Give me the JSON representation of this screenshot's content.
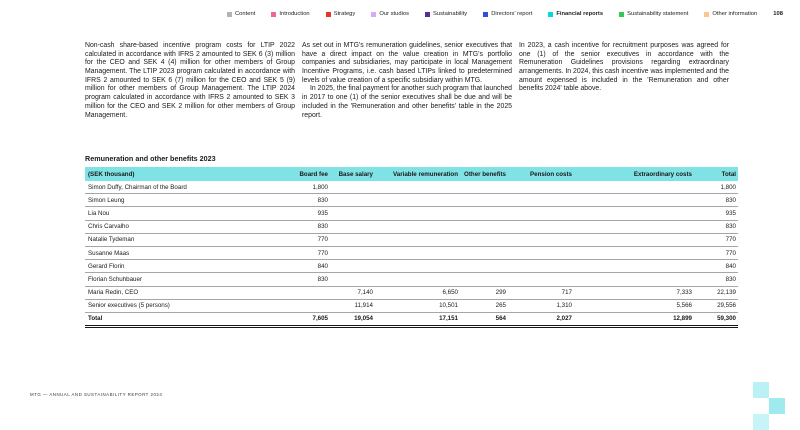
{
  "nav": {
    "items": [
      {
        "label": "Content",
        "color": "#b3b3b3"
      },
      {
        "label": "Introduction",
        "color": "#f26591"
      },
      {
        "label": "Strategy",
        "color": "#e8352b"
      },
      {
        "label": "Our studios",
        "color": "#d9aaf4"
      },
      {
        "label": "Sustainability",
        "color": "#5b2d9b"
      },
      {
        "label": "Directors' report",
        "color": "#2f4de2"
      },
      {
        "label": "Financial reports",
        "color": "#00dcdc"
      },
      {
        "label": "Sustainability statement",
        "color": "#36c75c"
      },
      {
        "label": "Other information",
        "color": "#fec38e"
      }
    ],
    "page_number": "108"
  },
  "body": {
    "col1_p1": "Non-cash share-based incentive program costs for LTIP 2022 calculated in accordance with IFRS 2 amounted to SEK 6 (3) million for the CEO and SEK 4 (4) million for other members of Group Management. The LTIP 2023 program calculated in accordance with IFRS 2 amounted to SEK 6 (7) million for the CEO and SEK 5 (9) million for other members of Group Management. The LTIP 2024 program calculated in accordance with IFRS 2 amounted to SEK 3 million for the CEO and SEK 2 million for other members of Group Management.",
    "col2_p1": "As set out in MTG's remuneration guidelines, senior executives that have a direct impact on the value creation in MTG's portfolio companies and subsidiaries, may participate in local Management Incentive Programs, i.e. cash based LTIPs linked to predetermined levels of value creation of a specific subsidiary within MTG.",
    "col2_p2": "In 2025, the final payment for another such program that launched in 2017 to one (1) of the senior executives shall be due and will be included in the 'Remuneration and other benefits' table in the 2025 report.",
    "col3_p1": "In 2023, a cash incentive for recruitment purposes was agreed for one (1) of the senior executives in accordance with the Remuneration Guidelines provisions regarding extraordinary arrangements. In 2024, this cash incentive was implemented and the amount expensed is included in the 'Remuneration and other benefits 2024' table above."
  },
  "table": {
    "title": "Remuneration and other benefits 2023",
    "header_bg": "#7fe2e5",
    "headers": [
      "(SEK thousand)",
      "Board fee",
      "Base salary",
      "Variable remuneration",
      "Other benefits",
      "Pension costs",
      "Extraordinary costs",
      "Total"
    ],
    "rows": [
      {
        "cells": [
          "Simon Duffy, Chairman of the Board",
          "1,800",
          "",
          "",
          "",
          "",
          "",
          "1,800"
        ]
      },
      {
        "cells": [
          "Simon Leung",
          "830",
          "",
          "",
          "",
          "",
          "",
          "830"
        ]
      },
      {
        "cells": [
          "Lia Nou",
          "935",
          "",
          "",
          "",
          "",
          "",
          "935"
        ]
      },
      {
        "cells": [
          "Chris Carvalho",
          "830",
          "",
          "",
          "",
          "",
          "",
          "830"
        ]
      },
      {
        "cells": [
          "Natalie Tydeman",
          "770",
          "",
          "",
          "",
          "",
          "",
          "770"
        ]
      },
      {
        "cells": [
          "Susanne Maas",
          "770",
          "",
          "",
          "",
          "",
          "",
          "770"
        ]
      },
      {
        "cells": [
          "Gerard Florin",
          "840",
          "",
          "",
          "",
          "",
          "",
          "840"
        ]
      },
      {
        "cells": [
          "Florian Schuhbauer",
          "830",
          "",
          "",
          "",
          "",
          "",
          "830"
        ]
      },
      {
        "cells": [
          "Maria Redin, CEO",
          "",
          "7,140",
          "6,650",
          "299",
          "717",
          "7,333",
          "22,139"
        ]
      },
      {
        "cells": [
          "Senior executives (5 persons)",
          "",
          "11,914",
          "10,501",
          "265",
          "1,310",
          "5,566",
          "29,556"
        ]
      }
    ],
    "total_row": {
      "cells": [
        "Total",
        "7,605",
        "19,054",
        "17,151",
        "564",
        "2,027",
        "12,899",
        "59,300"
      ]
    }
  },
  "footer": {
    "text": "MTG — ANNUAL AND SUSTAINABILITY REPORT 2024"
  },
  "logo": {
    "squares": [
      "#b9f1f5",
      "#9fe9ef",
      "#c6f4f7"
    ]
  }
}
